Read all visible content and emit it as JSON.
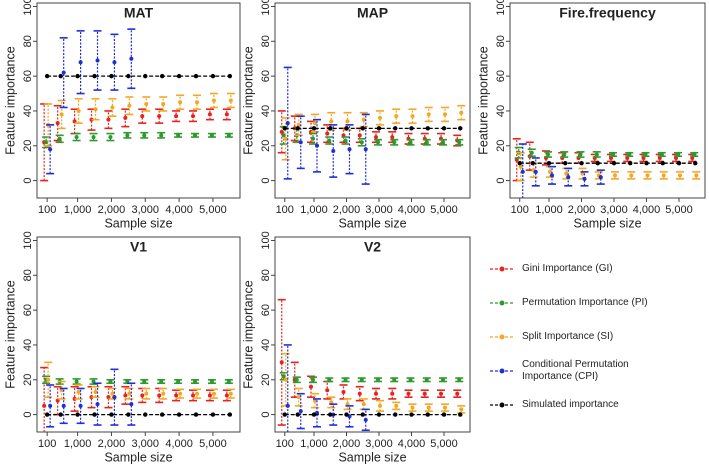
{
  "chart_data": [
    {
      "type": "errorbar",
      "title": "MAT",
      "xlabel": "Sample size",
      "ylabel": "Feature importance",
      "x": [
        100,
        500,
        1000,
        1500,
        2000,
        2500,
        3000,
        3500,
        4000,
        4500,
        5000,
        5500
      ],
      "xlim": [
        -200,
        5800
      ],
      "xticks": [
        100,
        {
          "value": 1000,
          "label": "1,000"
        },
        {
          "value": 2000,
          "label": "2,000"
        },
        {
          "value": 3000,
          "label": "3,000"
        },
        {
          "value": 4000,
          "label": "4,000"
        },
        {
          "value": 5000,
          "label": "5,000"
        }
      ],
      "ylim": [
        -10,
        102
      ],
      "yticks": [
        0,
        20,
        40,
        60,
        80,
        100
      ],
      "series": [
        {
          "values": [
            22,
            33,
            34,
            35,
            35,
            36,
            37,
            37,
            37,
            37,
            38,
            38
          ],
          "errors": [
            22,
            10,
            7,
            6,
            5,
            5,
            4,
            4,
            3,
            3,
            3,
            3
          ]
        },
        {
          "values": [
            22,
            24,
            25,
            25,
            25,
            26,
            26,
            26,
            26,
            26,
            26,
            26
          ],
          "errors": [
            3,
            2,
            2,
            2,
            2,
            1.5,
            1.5,
            1.5,
            1,
            1,
            1,
            1
          ]
        },
        {
          "values": [
            32,
            38,
            40,
            41,
            42,
            43,
            44,
            44,
            45,
            45,
            46,
            46
          ],
          "errors": [
            12,
            8,
            7,
            6,
            5,
            5,
            4,
            4,
            4,
            4,
            4,
            4
          ]
        },
        {
          "values": [
            18,
            62,
            68,
            69,
            68,
            70,
            null,
            null,
            null,
            null,
            null,
            null
          ],
          "errors": [
            14,
            20,
            18,
            17,
            16,
            17,
            null,
            null,
            null,
            null,
            null,
            null
          ]
        },
        {
          "values": [
            60,
            60,
            60,
            60,
            60,
            60,
            60,
            60,
            60,
            60,
            60,
            60
          ]
        }
      ]
    },
    {
      "type": "errorbar",
      "title": "MAP",
      "xlabel": "Sample size",
      "ylabel": "Feature importance",
      "x": [
        100,
        500,
        1000,
        1500,
        2000,
        2500,
        3000,
        3500,
        4000,
        4500,
        5000,
        5500
      ],
      "xlim": [
        -200,
        5800
      ],
      "xticks": [
        100,
        {
          "value": 1000,
          "label": "1,000"
        },
        {
          "value": 2000,
          "label": "2,000"
        },
        {
          "value": 3000,
          "label": "3,000"
        },
        {
          "value": 4000,
          "label": "4,000"
        },
        {
          "value": 5000,
          "label": "5,000"
        }
      ],
      "ylim": [
        -10,
        102
      ],
      "yticks": [
        0,
        20,
        40,
        60,
        80,
        100
      ],
      "series": [
        {
          "values": [
            28,
            30,
            28,
            27,
            26,
            26,
            25,
            25,
            24,
            24,
            24,
            23
          ],
          "errors": [
            12,
            7,
            6,
            5,
            4,
            4,
            3,
            3,
            3,
            3,
            3,
            3
          ]
        },
        {
          "values": [
            26,
            26,
            24,
            23,
            23,
            22,
            22,
            22,
            22,
            22,
            22,
            22
          ],
          "errors": [
            5,
            4,
            3,
            2,
            2,
            2,
            1.5,
            1.5,
            1.5,
            1.5,
            1.5,
            1.5
          ]
        },
        {
          "values": [
            24,
            32,
            33,
            34,
            34,
            35,
            36,
            37,
            37,
            38,
            38,
            39
          ],
          "errors": [
            12,
            6,
            5,
            5,
            5,
            4,
            4,
            4,
            4,
            4,
            4,
            4
          ]
        },
        {
          "values": [
            33,
            22,
            20,
            17,
            18,
            18,
            null,
            null,
            null,
            null,
            null,
            null
          ],
          "errors": [
            32,
            15,
            15,
            15,
            14,
            20,
            null,
            null,
            null,
            null,
            null,
            null
          ]
        },
        {
          "values": [
            30,
            30,
            30,
            30,
            30,
            30,
            30,
            30,
            30,
            30,
            30,
            30
          ]
        }
      ]
    },
    {
      "type": "errorbar",
      "title": "Fire.frequency",
      "xlabel": "Sample size",
      "ylabel": "Feature importance",
      "x": [
        100,
        500,
        1000,
        1500,
        2000,
        2500,
        3000,
        3500,
        4000,
        4500,
        5000,
        5500
      ],
      "xlim": [
        -200,
        5800
      ],
      "xticks": [
        100,
        {
          "value": 1000,
          "label": "1,000"
        },
        {
          "value": 2000,
          "label": "2,000"
        },
        {
          "value": 3000,
          "label": "3,000"
        },
        {
          "value": 4000,
          "label": "4,000"
        },
        {
          "value": 5000,
          "label": "5,000"
        }
      ],
      "ylim": [
        -10,
        102
      ],
      "yticks": [
        0,
        20,
        40,
        60,
        80,
        100
      ],
      "series": [
        {
          "values": [
            12,
            14,
            13,
            13,
            13,
            13,
            13,
            13,
            13,
            13,
            13,
            13
          ],
          "errors": [
            12,
            8,
            4,
            3,
            3,
            2,
            2,
            2,
            2,
            2,
            2,
            2
          ]
        },
        {
          "values": [
            16,
            16,
            15,
            15,
            15,
            15,
            15,
            15,
            15,
            15,
            15,
            15
          ],
          "errors": [
            3,
            2,
            1.5,
            1.5,
            1.5,
            1.5,
            1,
            1,
            1,
            1,
            1,
            1
          ]
        },
        {
          "values": [
            8,
            6,
            5,
            4,
            4,
            3,
            3,
            3,
            3,
            3,
            3,
            3
          ],
          "errors": [
            8,
            4,
            3,
            3,
            3,
            2,
            2,
            2,
            2,
            2,
            2,
            2
          ]
        },
        {
          "values": [
            5,
            5,
            3,
            2,
            1,
            2,
            null,
            null,
            null,
            null,
            null,
            null
          ],
          "errors": [
            16,
            8,
            5,
            5,
            4,
            4,
            null,
            null,
            null,
            null,
            null,
            null
          ]
        },
        {
          "values": [
            10,
            10,
            10,
            10,
            10,
            10,
            10,
            10,
            10,
            10,
            10,
            10
          ]
        }
      ]
    },
    {
      "type": "errorbar",
      "title": "V1",
      "xlabel": "Sample size",
      "ylabel": "Feature importance",
      "x": [
        100,
        500,
        1000,
        1500,
        2000,
        2500,
        3000,
        3500,
        4000,
        4500,
        5000,
        5500
      ],
      "xlim": [
        -200,
        5800
      ],
      "xticks": [
        100,
        {
          "value": 1000,
          "label": "1,000"
        },
        {
          "value": 2000,
          "label": "2,000"
        },
        {
          "value": 3000,
          "label": "3,000"
        },
        {
          "value": 4000,
          "label": "4,000"
        },
        {
          "value": 5000,
          "label": "5,000"
        }
      ],
      "ylim": [
        -10,
        102
      ],
      "yticks": [
        0,
        20,
        40,
        60,
        80,
        100
      ],
      "series": [
        {
          "values": [
            5,
            8,
            9,
            10,
            10,
            11,
            11,
            11,
            11,
            11,
            11,
            11
          ],
          "errors": [
            22,
            8,
            7,
            6,
            6,
            5,
            4,
            4,
            3,
            3,
            3,
            3
          ]
        },
        {
          "values": [
            20,
            19,
            19,
            19,
            19,
            19,
            19,
            19,
            19,
            19,
            19,
            19
          ],
          "errors": [
            2,
            1.5,
            1.5,
            1.5,
            1,
            1,
            1,
            1,
            1,
            1,
            1,
            1
          ]
        },
        {
          "values": [
            20,
            14,
            13,
            13,
            12,
            12,
            12,
            12,
            12,
            12,
            12,
            12
          ],
          "errors": [
            10,
            5,
            4,
            3,
            3,
            3,
            3,
            3,
            2.5,
            2.5,
            2.5,
            2.5
          ]
        },
        {
          "values": [
            5,
            5,
            5,
            6,
            10,
            6,
            null,
            null,
            null,
            null,
            null,
            null
          ],
          "errors": [
            12,
            10,
            10,
            12,
            16,
            12,
            null,
            null,
            null,
            null,
            null,
            null
          ]
        },
        {
          "values": [
            0,
            0,
            0,
            0,
            0,
            0,
            0,
            0,
            0,
            0,
            0,
            0
          ]
        }
      ]
    },
    {
      "type": "errorbar",
      "title": "V2",
      "xlabel": "Sample size",
      "ylabel": "Feature importance",
      "x": [
        100,
        500,
        1000,
        1500,
        2000,
        2500,
        3000,
        3500,
        4000,
        4500,
        5000,
        5500
      ],
      "xlim": [
        -200,
        5800
      ],
      "xticks": [
        100,
        {
          "value": 1000,
          "label": "1,000"
        },
        {
          "value": 2000,
          "label": "2,000"
        },
        {
          "value": 3000,
          "label": "3,000"
        },
        {
          "value": 4000,
          "label": "4,000"
        },
        {
          "value": 5000,
          "label": "5,000"
        }
      ],
      "ylim": [
        -10,
        102
      ],
      "yticks": [
        0,
        20,
        40,
        60,
        80,
        100
      ],
      "series": [
        {
          "values": [
            30,
            20,
            16,
            14,
            13,
            12,
            12,
            12,
            12,
            12,
            12,
            12
          ],
          "errors": [
            36,
            10,
            6,
            5,
            4,
            4,
            3,
            3,
            2,
            2,
            2,
            2
          ]
        },
        {
          "values": [
            22,
            20,
            20,
            20,
            20,
            20,
            20,
            20,
            20,
            20,
            20,
            20
          ],
          "errors": [
            2,
            1.5,
            1.5,
            1,
            1,
            1,
            1,
            1,
            1,
            1,
            1,
            1
          ]
        },
        {
          "values": [
            20,
            10,
            8,
            7,
            6,
            6,
            5,
            5,
            4,
            4,
            4,
            3
          ],
          "errors": [
            15,
            5,
            4,
            3,
            3,
            3,
            3,
            2,
            2,
            2,
            2,
            2
          ]
        },
        {
          "values": [
            5,
            2,
            1,
            0,
            -1,
            -3,
            null,
            null,
            null,
            null,
            null,
            null
          ],
          "errors": [
            35,
            10,
            8,
            6,
            6,
            6,
            null,
            null,
            null,
            null,
            null,
            null
          ]
        },
        {
          "values": [
            0,
            0,
            0,
            0,
            0,
            0,
            0,
            0,
            0,
            0,
            0,
            0
          ]
        }
      ]
    }
  ],
  "legend": {
    "entries": [
      {
        "name": "Gini Importance (GI)",
        "color": "#e8221c"
      },
      {
        "name": "Permutation Importance (PI)",
        "color": "#2e9a2e"
      },
      {
        "name": "Split Importance (SI)",
        "color": "#f5a623"
      },
      {
        "name": "Conditional Permutation Importance (CPI)",
        "color": "#1f2fd6"
      },
      {
        "name": "Simulated importance",
        "color": "#000000"
      }
    ]
  }
}
